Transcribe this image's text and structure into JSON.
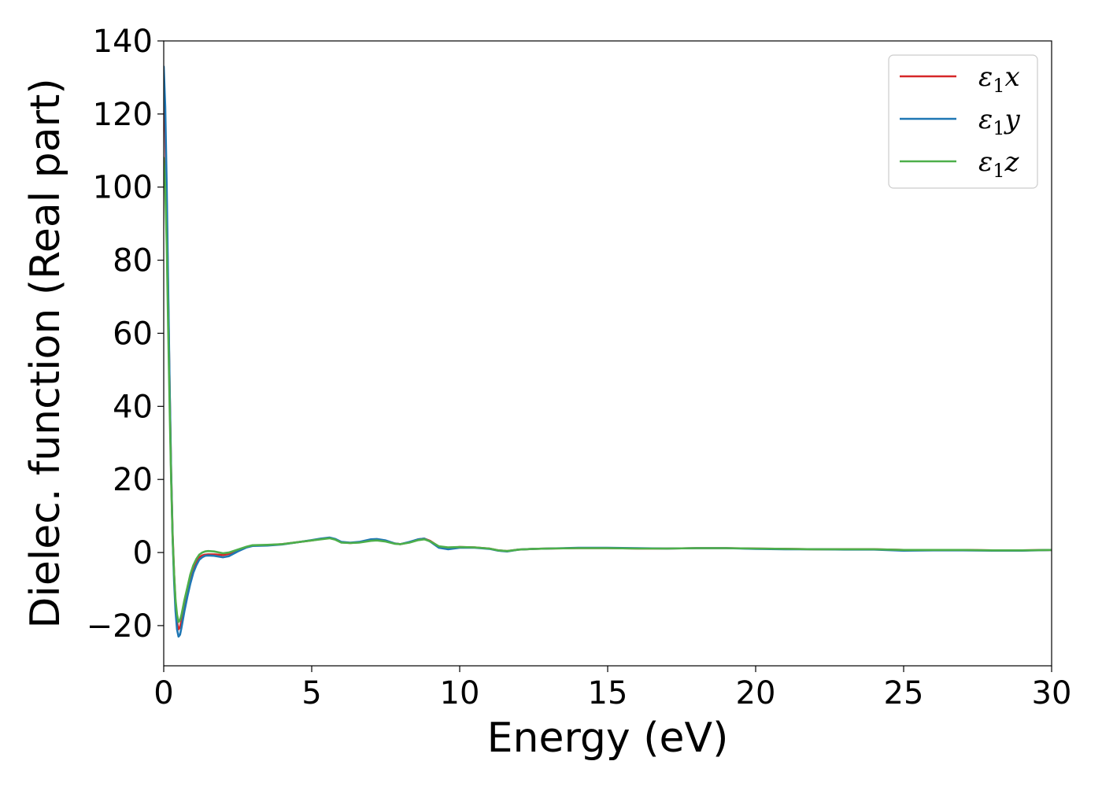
{
  "chart_data": {
    "type": "line",
    "title": "",
    "xlabel": "Energy (eV)",
    "ylabel": "Dielec. function (Real part)",
    "xlim": [
      0,
      30
    ],
    "ylim": [
      -31,
      140
    ],
    "xticks": [
      0,
      5,
      10,
      15,
      20,
      25,
      30
    ],
    "xtick_labels": [
      "0",
      "5",
      "10",
      "15",
      "20",
      "25",
      "30"
    ],
    "yticks": [
      -20,
      0,
      20,
      40,
      60,
      80,
      100,
      120,
      140
    ],
    "ytick_labels": [
      "−20",
      "0",
      "20",
      "40",
      "60",
      "80",
      "100",
      "120",
      "140"
    ],
    "grid": false,
    "legend_position": "top-right",
    "series": [
      {
        "name": "ε1x",
        "legend_base": "ε",
        "legend_sub": "1",
        "legend_var": "x",
        "color": "#d62728",
        "x": [
          0,
          0.05,
          0.1,
          0.15,
          0.2,
          0.25,
          0.3,
          0.35,
          0.4,
          0.45,
          0.5,
          0.55,
          0.6,
          0.7,
          0.8,
          0.9,
          1.0,
          1.1,
          1.2,
          1.3,
          1.4,
          1.5,
          1.7,
          2.0,
          2.2,
          2.5,
          2.8,
          3.0,
          3.5,
          4.0,
          4.5,
          5.0,
          5.3,
          5.6,
          5.8,
          6.0,
          6.3,
          6.6,
          7.0,
          7.2,
          7.5,
          7.8,
          8.0,
          8.3,
          8.6,
          8.8,
          9.0,
          9.3,
          9.6,
          10.0,
          10.5,
          11.0,
          11.3,
          11.6,
          12.0,
          12.5,
          13.0,
          14.0,
          15.0,
          16.0,
          17.0,
          18.0,
          19.0,
          20.0,
          21.0,
          22.0,
          23.0,
          24.0,
          25.0,
          26.0,
          27.0,
          28.0,
          29.0,
          30.0
        ],
        "y": [
          125,
          115,
          95,
          70,
          45,
          22,
          5,
          -6,
          -14,
          -19,
          -21,
          -20.5,
          -18.5,
          -14.5,
          -10.5,
          -7,
          -4.5,
          -2.5,
          -1.3,
          -0.8,
          -0.6,
          -0.5,
          -0.5,
          -0.7,
          -0.4,
          0.6,
          1.5,
          1.9,
          2.0,
          2.3,
          2.8,
          3.3,
          3.7,
          4.0,
          3.6,
          2.8,
          2.6,
          2.8,
          3.5,
          3.6,
          3.2,
          2.5,
          2.3,
          2.8,
          3.6,
          3.8,
          3.2,
          1.6,
          1.2,
          1.5,
          1.4,
          1.1,
          0.6,
          0.4,
          0.8,
          1.0,
          1.1,
          1.2,
          1.2,
          1.1,
          1.1,
          1.2,
          1.2,
          1.1,
          1.0,
          0.9,
          0.9,
          0.9,
          0.7,
          0.7,
          0.7,
          0.6,
          0.6,
          0.7
        ]
      },
      {
        "name": "ε1y",
        "legend_base": "ε",
        "legend_sub": "1",
        "legend_var": "y",
        "color": "#1f77b4",
        "x": [
          0,
          0.05,
          0.1,
          0.15,
          0.2,
          0.25,
          0.3,
          0.35,
          0.4,
          0.45,
          0.5,
          0.55,
          0.6,
          0.7,
          0.8,
          0.9,
          1.0,
          1.1,
          1.2,
          1.3,
          1.4,
          1.5,
          1.7,
          2.0,
          2.2,
          2.5,
          2.8,
          3.0,
          3.5,
          4.0,
          4.5,
          5.0,
          5.3,
          5.6,
          5.8,
          6.0,
          6.3,
          6.6,
          7.0,
          7.2,
          7.5,
          7.8,
          8.0,
          8.3,
          8.6,
          8.8,
          9.0,
          9.3,
          9.6,
          10.0,
          10.5,
          11.0,
          11.3,
          11.6,
          12.0,
          12.5,
          13.0,
          14.0,
          15.0,
          16.0,
          17.0,
          18.0,
          19.0,
          20.0,
          21.0,
          22.0,
          23.0,
          24.0,
          25.0,
          26.0,
          27.0,
          28.0,
          29.0,
          30.0
        ],
        "y": [
          133,
          122,
          100,
          73,
          46,
          22,
          4,
          -8,
          -16,
          -21,
          -23,
          -22.5,
          -20.5,
          -16,
          -12,
          -8.5,
          -5.5,
          -3.5,
          -2,
          -1.3,
          -0.9,
          -0.8,
          -0.9,
          -1.3,
          -1.0,
          0.3,
          1.4,
          1.8,
          1.9,
          2.2,
          2.8,
          3.4,
          3.8,
          4.1,
          3.7,
          2.9,
          2.7,
          2.9,
          3.6,
          3.7,
          3.3,
          2.5,
          2.3,
          2.9,
          3.6,
          3.8,
          3.0,
          1.3,
          0.9,
          1.3,
          1.3,
          1.0,
          0.5,
          0.3,
          0.8,
          1.0,
          1.1,
          1.3,
          1.3,
          1.2,
          1.1,
          1.2,
          1.2,
          1.0,
          0.9,
          0.9,
          0.8,
          0.8,
          0.5,
          0.6,
          0.6,
          0.5,
          0.5,
          0.7
        ]
      },
      {
        "name": "ε1z",
        "legend_base": "ε",
        "legend_sub": "1",
        "legend_var": "z",
        "color": "#4daf4a",
        "x": [
          0,
          0.05,
          0.1,
          0.15,
          0.2,
          0.25,
          0.3,
          0.35,
          0.4,
          0.45,
          0.5,
          0.55,
          0.6,
          0.7,
          0.8,
          0.9,
          1.0,
          1.1,
          1.2,
          1.3,
          1.4,
          1.5,
          1.7,
          2.0,
          2.2,
          2.5,
          2.8,
          3.0,
          3.5,
          4.0,
          4.5,
          5.0,
          5.3,
          5.6,
          5.8,
          6.0,
          6.3,
          6.6,
          7.0,
          7.2,
          7.5,
          7.8,
          8.0,
          8.3,
          8.6,
          8.8,
          9.0,
          9.3,
          9.6,
          10.0,
          10.5,
          11.0,
          11.3,
          11.6,
          12.0,
          12.5,
          13.0,
          14.0,
          15.0,
          16.0,
          17.0,
          18.0,
          19.0,
          20.0,
          21.0,
          22.0,
          23.0,
          24.0,
          25.0,
          26.0,
          27.0,
          28.0,
          29.0,
          30.0
        ],
        "y": [
          108,
          100,
          84,
          62,
          40,
          20,
          4,
          -6,
          -13,
          -17,
          -19,
          -18.5,
          -17,
          -13,
          -9.5,
          -6,
          -3.5,
          -1.8,
          -0.6,
          0,
          0.3,
          0.4,
          0.3,
          -0.2,
          0.0,
          0.8,
          1.6,
          2.0,
          2.1,
          2.3,
          2.8,
          3.3,
          3.6,
          3.9,
          3.5,
          2.7,
          2.6,
          2.7,
          3.2,
          3.3,
          3.0,
          2.4,
          2.3,
          2.7,
          3.4,
          3.6,
          3.1,
          1.7,
          1.4,
          1.5,
          1.4,
          1.1,
          0.6,
          0.4,
          0.8,
          1.0,
          1.1,
          1.2,
          1.2,
          1.1,
          1.1,
          1.2,
          1.2,
          1.1,
          1.0,
          0.9,
          0.9,
          0.9,
          0.7,
          0.7,
          0.7,
          0.6,
          0.6,
          0.7
        ]
      }
    ]
  }
}
